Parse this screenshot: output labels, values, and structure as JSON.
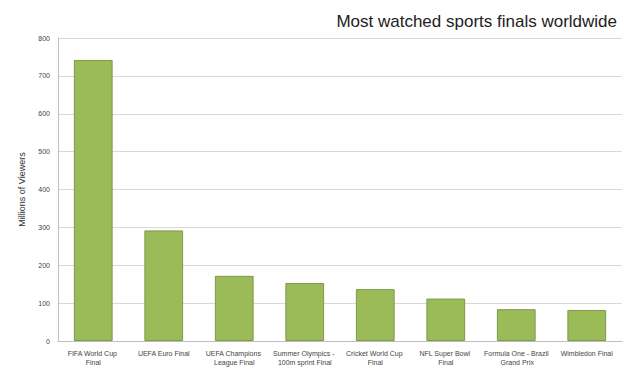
{
  "chart_data": {
    "type": "bar",
    "title": "Most watched sports finals worldwide",
    "y_label": "Millions of Viewers",
    "categories": [
      "FIFA World Cup Final",
      "UEFA Euro Final",
      "UEFA Champions League Final",
      "Summer Olympics - 100m sprint Final",
      "Cricket World Cup Final",
      "NFL Super Bowl Final",
      "Formula One - Brazil Grand Prix",
      "Wimbledon Final"
    ],
    "values": [
      742,
      292,
      172,
      153,
      137,
      112,
      84,
      82
    ],
    "color": "#9bbb59",
    "ylim": [
      0,
      800
    ],
    "yticks": [
      0,
      100,
      200,
      300,
      400,
      500,
      600,
      700,
      800
    ],
    "grid": true
  }
}
